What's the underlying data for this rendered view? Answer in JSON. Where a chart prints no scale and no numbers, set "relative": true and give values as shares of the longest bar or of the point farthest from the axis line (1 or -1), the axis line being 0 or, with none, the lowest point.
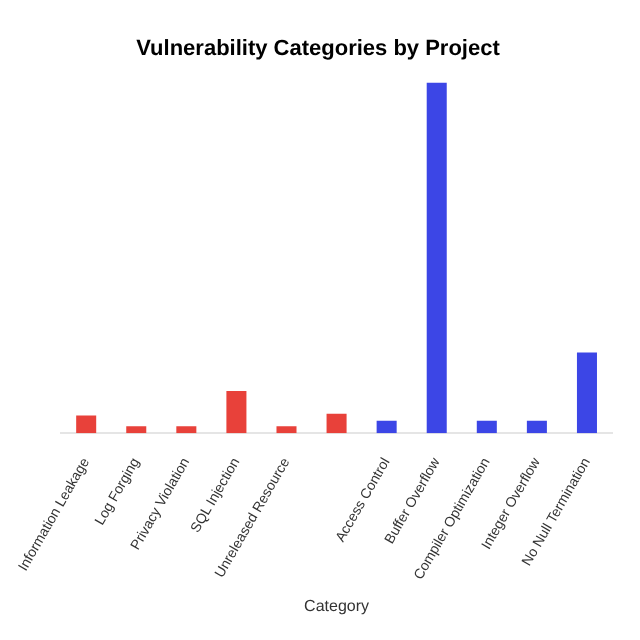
{
  "chart_data": {
    "type": "bar",
    "title": "Vulnerability Categories by Project",
    "xlabel": "Category",
    "relative": true,
    "categories": [
      "Information Leakage",
      "Log Forging",
      "Privacy Violation",
      "SQL Injection",
      "Unreleased Resource",
      null,
      "Access Control",
      "Buffer Overflow",
      "Compiler Optimization",
      "Integer Overflow",
      "No Null Termination"
    ],
    "values": [
      0.05,
      0.02,
      0.02,
      0.12,
      0.02,
      0.055,
      0.035,
      1,
      0.035,
      0.035,
      0.23
    ],
    "colors": [
      "#e8413a",
      "#e8413a",
      "#e8413a",
      "#e8413a",
      "#e8413a",
      "#e8413a",
      "#3c46e6",
      "#3c46e6",
      "#3c46e6",
      "#3c46e6",
      "#3c46e6"
    ],
    "legend": false
  }
}
